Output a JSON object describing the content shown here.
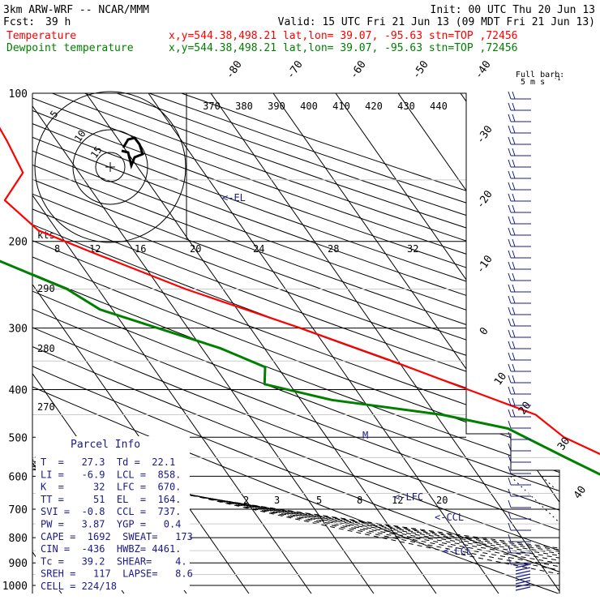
{
  "header": {
    "model": "3km ARW-WRF -- NCAR/MMM",
    "init": "Init: 00 UTC Thu 20 Jun 13",
    "fcst_label": "Fcst:",
    "fcst_value": "39 h",
    "valid": "Valid: 15 UTC Fri 21 Jun 13 (09 MDT Fri 21 Jun 13)",
    "temp_name": "Temperature",
    "dew_name": "Dewpoint temperature",
    "location": "x,y=544.38,498.21   lat,lon= 39.07, -95.63   stn=TOP ,72456",
    "temp_color": "#ff0000",
    "dew_color": "#008000"
  },
  "chart_data": {
    "type": "line",
    "pressure_levels_hPa": [
      100,
      200,
      300,
      400,
      500,
      600,
      700,
      800,
      900,
      1000
    ],
    "pressure_labels": [
      "100",
      "200",
      "300",
      "400",
      "500",
      "600",
      "700",
      "800",
      "900",
      "1000"
    ],
    "isotherm_labels_C": [
      "-80",
      "-70",
      "-60",
      "-50",
      "-40",
      "-30",
      "-20",
      "-10",
      "0",
      "10",
      "20",
      "30",
      "40"
    ],
    "potential_temp_labels_K": [
      "370",
      "380",
      "390",
      "400",
      "410",
      "420",
      "430",
      "440"
    ],
    "dry_adiabat_labels_K": [
      "290",
      "280",
      "270"
    ],
    "mixing_ratio_labels": [
      "2",
      "3",
      "5",
      "8",
      "12",
      "20"
    ],
    "series": [
      {
        "name": "Temperature",
        "points": [
          [
            100,
            -57
          ],
          [
            125,
            -58
          ],
          [
            145,
            -59
          ],
          [
            165,
            -65
          ],
          [
            190,
            -63
          ],
          [
            210,
            -57
          ],
          [
            250,
            -46
          ],
          [
            300,
            -32
          ],
          [
            350,
            -21
          ],
          [
            400,
            -12
          ],
          [
            450,
            -4
          ],
          [
            500,
            -2
          ],
          [
            600,
            7
          ],
          [
            700,
            12
          ],
          [
            800,
            20
          ],
          [
            850,
            21
          ],
          [
            900,
            18
          ],
          [
            940,
            21
          ],
          [
            975,
            23
          ]
        ]
      },
      {
        "name": "Dewpoint temperature",
        "points": [
          [
            100,
            -75
          ],
          [
            130,
            -79
          ],
          [
            160,
            -82
          ],
          [
            200,
            -78
          ],
          [
            250,
            -65
          ],
          [
            275,
            -62
          ],
          [
            330,
            -47
          ],
          [
            360,
            -42
          ],
          [
            390,
            -44
          ],
          [
            420,
            -35
          ],
          [
            450,
            -19
          ],
          [
            480,
            -10
          ],
          [
            550,
            -4
          ],
          [
            600,
            0
          ],
          [
            650,
            1
          ],
          [
            700,
            1
          ],
          [
            750,
            2
          ],
          [
            800,
            -1
          ],
          [
            850,
            8
          ],
          [
            900,
            18
          ],
          [
            940,
            21
          ],
          [
            975,
            22
          ]
        ]
      }
    ],
    "annotations": {
      "el": "<-EL",
      "lfc": "<-LFC",
      "ccl": "<-CCL",
      "lcl": "<-LCL",
      "m": "M"
    }
  },
  "hodograph": {
    "units": "kts",
    "ring_labels": [
      "5",
      "10",
      "15"
    ],
    "wind_values": [
      "8",
      "12",
      "16",
      "20",
      "24",
      "28",
      "32"
    ]
  },
  "barbs": {
    "title": "Full barb:",
    "subtitle": "5 m s",
    "superscript": "-1"
  },
  "parcel_info": {
    "title": "Parcel Info",
    "rows": [
      "T  =   27.3  Td =  22.1",
      "LI =   -6.9  LCL =  858.",
      "K  =     32  LFC =  670.",
      "TT =     51  EL  =  164.",
      "SVI =  -0.8  CCL =  737.",
      "PW =   3.87  YGP =   0.4",
      "CAPE =  1692  SWEAT=   173",
      "CIN =  -436  HWBZ= 4461.",
      "Tc =   39.2  SHEAR=    4.",
      "SREH =   117  LAPSE=   8.6",
      "CELL = 224/18"
    ]
  }
}
